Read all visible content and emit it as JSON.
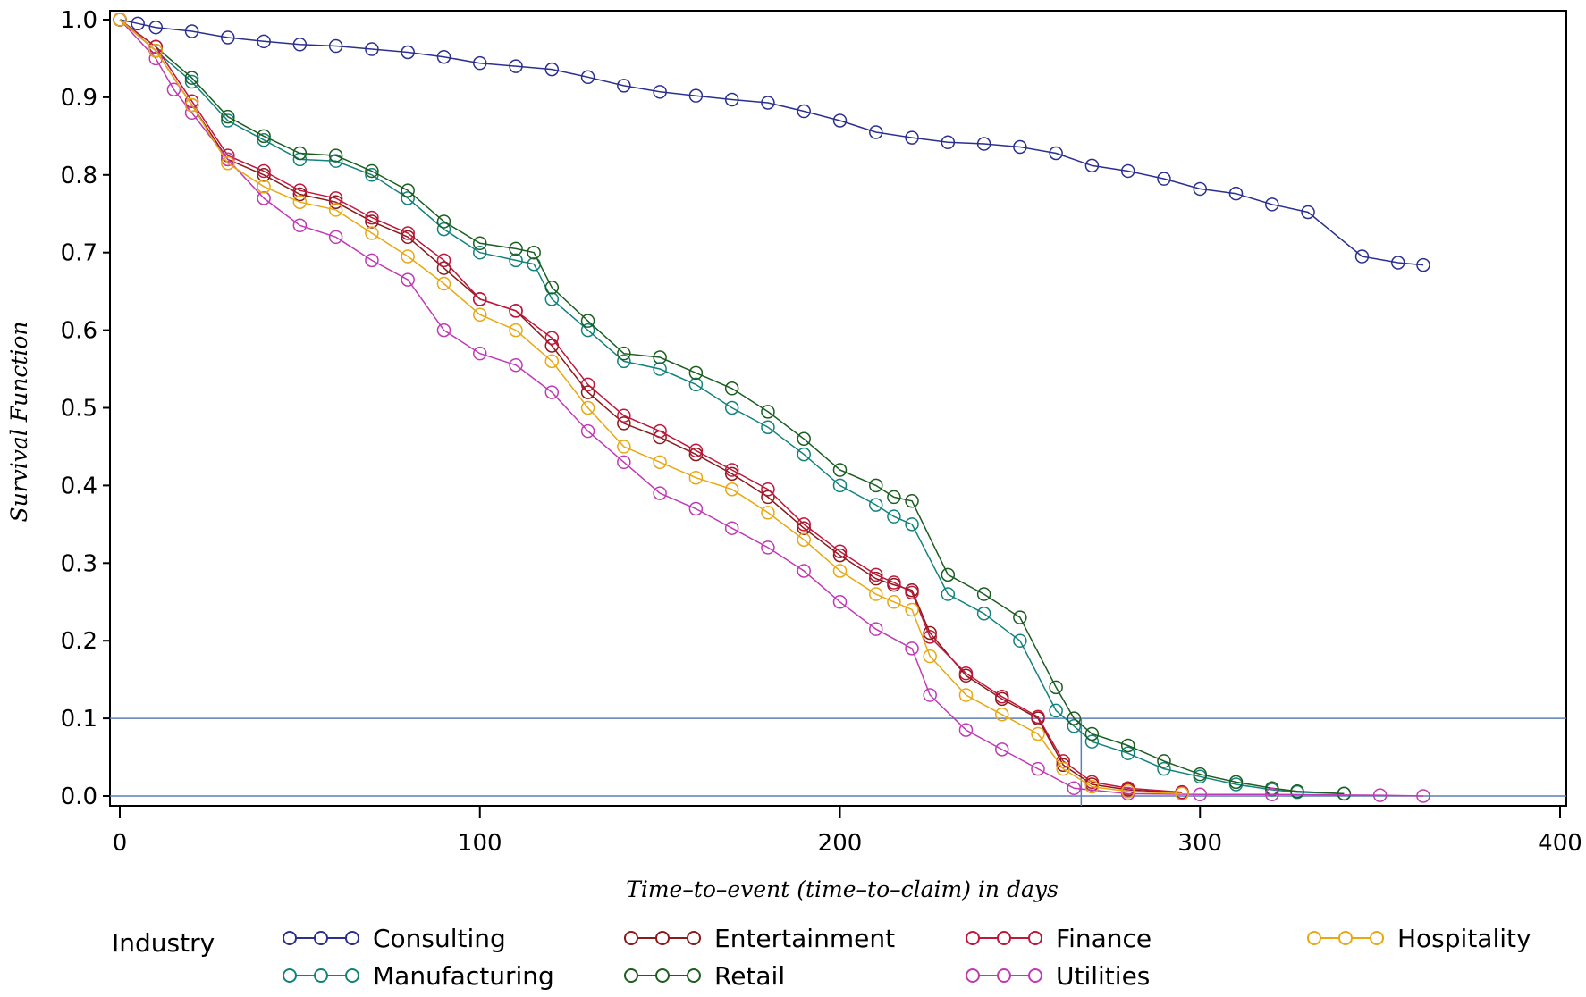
{
  "chart_data": {
    "type": "line",
    "title": "",
    "xlabel": "Time–to–event (time–to–claim) in days",
    "ylabel": "Survival Function",
    "xlim": [
      0,
      400
    ],
    "ylim": [
      0,
      1
    ],
    "x_ticks": [
      "0",
      "100",
      "200",
      "300",
      "400"
    ],
    "y_ticks": [
      "0.0",
      "0.1",
      "0.2",
      "0.3",
      "0.4",
      "0.5",
      "0.6",
      "0.7",
      "0.8",
      "0.9",
      "1.0"
    ],
    "reference_lines": {
      "y": [
        0.1,
        0.0
      ],
      "x": [
        267
      ]
    },
    "legend": {
      "title": "Industry",
      "position": "bottom"
    },
    "series": [
      {
        "name": "Consulting",
        "color": "#2b2f8f",
        "x": [
          0,
          5,
          10,
          20,
          30,
          40,
          50,
          60,
          70,
          80,
          90,
          100,
          110,
          120,
          130,
          140,
          150,
          160,
          170,
          180,
          190,
          200,
          210,
          220,
          230,
          240,
          250,
          260,
          270,
          280,
          290,
          300,
          310,
          320,
          330,
          345,
          355,
          362
        ],
        "y": [
          1.0,
          0.995,
          0.99,
          0.985,
          0.977,
          0.972,
          0.968,
          0.966,
          0.962,
          0.958,
          0.952,
          0.944,
          0.94,
          0.936,
          0.926,
          0.915,
          0.907,
          0.902,
          0.897,
          0.893,
          0.882,
          0.87,
          0.855,
          0.848,
          0.842,
          0.84,
          0.836,
          0.828,
          0.812,
          0.805,
          0.795,
          0.782,
          0.776,
          0.762,
          0.752,
          0.695,
          0.687,
          0.684
        ]
      },
      {
        "name": "Manufacturing",
        "color": "#12837c",
        "x": [
          0,
          10,
          20,
          30,
          40,
          50,
          60,
          70,
          80,
          90,
          100,
          110,
          115,
          120,
          130,
          140,
          150,
          160,
          170,
          180,
          190,
          200,
          210,
          215,
          220,
          230,
          240,
          250,
          260,
          265,
          270,
          280,
          290,
          300,
          310,
          320,
          327,
          340
        ],
        "y": [
          1.0,
          0.96,
          0.92,
          0.87,
          0.845,
          0.82,
          0.818,
          0.8,
          0.77,
          0.73,
          0.7,
          0.69,
          0.685,
          0.64,
          0.6,
          0.56,
          0.55,
          0.53,
          0.5,
          0.475,
          0.44,
          0.4,
          0.375,
          0.36,
          0.35,
          0.26,
          0.235,
          0.2,
          0.11,
          0.09,
          0.07,
          0.055,
          0.035,
          0.025,
          0.015,
          0.008,
          0.005,
          0.003
        ]
      },
      {
        "name": "Entertainment",
        "color": "#8b1a1a",
        "x": [
          0,
          10,
          20,
          30,
          40,
          50,
          60,
          70,
          80,
          90,
          100,
          110,
          120,
          130,
          140,
          150,
          160,
          170,
          180,
          190,
          200,
          210,
          215,
          220,
          225,
          235,
          245,
          255,
          262,
          270,
          280,
          295
        ],
        "y": [
          1.0,
          0.96,
          0.89,
          0.82,
          0.8,
          0.775,
          0.765,
          0.74,
          0.72,
          0.68,
          0.64,
          0.625,
          0.58,
          0.52,
          0.48,
          0.462,
          0.44,
          0.415,
          0.385,
          0.345,
          0.31,
          0.28,
          0.272,
          0.265,
          0.21,
          0.155,
          0.125,
          0.1,
          0.04,
          0.015,
          0.008,
          0.004
        ]
      },
      {
        "name": "Retail",
        "color": "#1b5e20",
        "x": [
          0,
          10,
          20,
          30,
          40,
          50,
          60,
          70,
          80,
          90,
          100,
          110,
          115,
          120,
          130,
          140,
          150,
          160,
          170,
          180,
          190,
          200,
          210,
          215,
          220,
          230,
          240,
          250,
          260,
          265,
          270,
          280,
          290,
          300,
          310,
          320,
          327,
          340
        ],
        "y": [
          1.0,
          0.965,
          0.925,
          0.875,
          0.85,
          0.828,
          0.825,
          0.805,
          0.78,
          0.74,
          0.712,
          0.705,
          0.7,
          0.655,
          0.612,
          0.57,
          0.565,
          0.545,
          0.525,
          0.495,
          0.46,
          0.42,
          0.4,
          0.385,
          0.38,
          0.285,
          0.26,
          0.23,
          0.14,
          0.1,
          0.08,
          0.065,
          0.045,
          0.028,
          0.018,
          0.01,
          0.006,
          0.003
        ]
      },
      {
        "name": "Finance",
        "color": "#c0163c",
        "x": [
          0,
          10,
          20,
          30,
          40,
          50,
          60,
          70,
          80,
          90,
          100,
          110,
          120,
          130,
          140,
          150,
          160,
          170,
          180,
          190,
          200,
          210,
          215,
          220,
          225,
          235,
          245,
          255,
          262,
          270,
          280,
          295
        ],
        "y": [
          1.0,
          0.965,
          0.895,
          0.825,
          0.805,
          0.78,
          0.77,
          0.745,
          0.725,
          0.69,
          0.64,
          0.625,
          0.59,
          0.53,
          0.49,
          0.47,
          0.445,
          0.42,
          0.395,
          0.35,
          0.315,
          0.285,
          0.275,
          0.262,
          0.205,
          0.158,
          0.128,
          0.102,
          0.045,
          0.018,
          0.01,
          0.005
        ]
      },
      {
        "name": "Utilities",
        "color": "#c13ab5",
        "x": [
          0,
          10,
          15,
          20,
          30,
          40,
          50,
          60,
          70,
          80,
          90,
          100,
          110,
          120,
          130,
          140,
          150,
          160,
          170,
          180,
          190,
          200,
          210,
          220,
          225,
          235,
          245,
          255,
          265,
          280,
          300,
          320,
          350,
          362
        ],
        "y": [
          1.0,
          0.95,
          0.91,
          0.88,
          0.82,
          0.77,
          0.735,
          0.72,
          0.69,
          0.665,
          0.6,
          0.57,
          0.555,
          0.52,
          0.47,
          0.43,
          0.39,
          0.37,
          0.345,
          0.32,
          0.29,
          0.25,
          0.215,
          0.19,
          0.13,
          0.085,
          0.06,
          0.035,
          0.01,
          0.003,
          0.002,
          0.002,
          0.001,
          0.0
        ]
      },
      {
        "name": "Hospitality",
        "color": "#e8a812",
        "x": [
          0,
          10,
          20,
          30,
          40,
          50,
          60,
          70,
          80,
          90,
          100,
          110,
          120,
          130,
          140,
          150,
          160,
          170,
          180,
          190,
          200,
          210,
          215,
          220,
          225,
          235,
          245,
          255,
          262,
          270,
          280,
          295
        ],
        "y": [
          1.0,
          0.96,
          0.89,
          0.815,
          0.785,
          0.765,
          0.755,
          0.725,
          0.695,
          0.66,
          0.62,
          0.6,
          0.56,
          0.5,
          0.45,
          0.43,
          0.41,
          0.395,
          0.365,
          0.33,
          0.29,
          0.26,
          0.25,
          0.24,
          0.18,
          0.13,
          0.105,
          0.08,
          0.035,
          0.012,
          0.006,
          0.003
        ]
      }
    ]
  },
  "legend_order": [
    [
      "Consulting",
      "Entertainment",
      "Finance",
      "Hospitality"
    ],
    [
      "Manufacturing",
      "Retail",
      "Utilities"
    ]
  ]
}
